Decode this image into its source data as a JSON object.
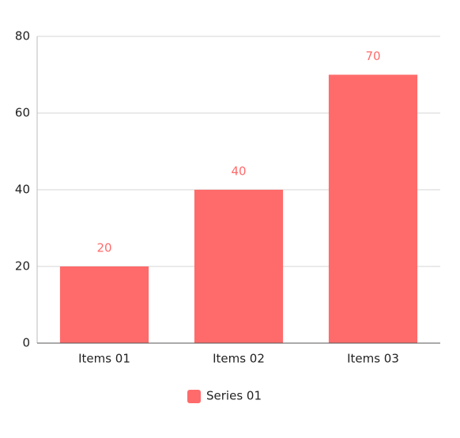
{
  "chart_data": {
    "type": "bar",
    "categories": [
      "Items 01",
      "Items 02",
      "Items 03"
    ],
    "series": [
      {
        "name": "Series 01",
        "color": "#ff6b6b",
        "values": [
          20,
          40,
          70
        ]
      }
    ],
    "ylim": [
      0,
      80
    ],
    "yticks": [
      0,
      20,
      40,
      60,
      80
    ],
    "grid": true,
    "legend": "bottom"
  }
}
